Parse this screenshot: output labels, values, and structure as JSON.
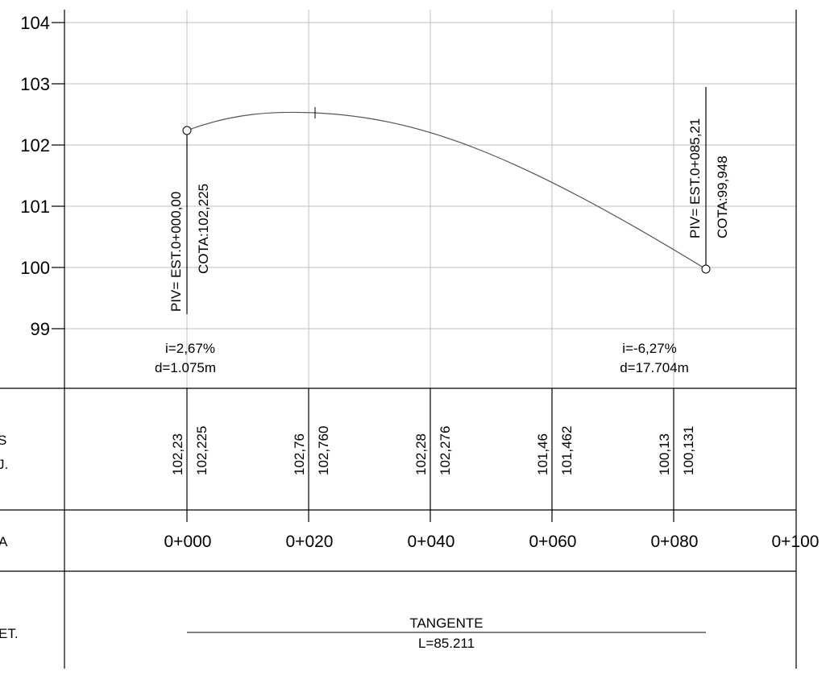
{
  "profile": {
    "y_ticks": [
      "104",
      "103",
      "102",
      "101",
      "100",
      "99"
    ],
    "piv_start": {
      "label": "PIV= EST.0+000,00",
      "cota": "COTA:102,225"
    },
    "piv_end": {
      "label": "PIV= EST.0+085,21",
      "cota": "COTA:99,948"
    },
    "slope_left": {
      "i": "i=2,67%",
      "d": "d=1.075m"
    },
    "slope_right": {
      "i": "i=-6,27%",
      "d": "d=17.704m"
    }
  },
  "rows": {
    "cotas_label_partial": [
      "S",
      "J."
    ],
    "estaca_label_partial": "A",
    "alinhamento_label_partial": "ET.",
    "cotas": [
      {
        "terreno": "102,23",
        "projeto": "102,225"
      },
      {
        "terreno": "102,76",
        "projeto": "102,760"
      },
      {
        "terreno": "102,28",
        "projeto": "102,276"
      },
      {
        "terreno": "101,46",
        "projeto": "101,462"
      },
      {
        "terreno": "100,13",
        "projeto": "100,131"
      }
    ],
    "stations": [
      "0+000",
      "0+020",
      "0+040",
      "0+060",
      "0+080",
      "0+100"
    ],
    "tangent": {
      "title": "TANGENTE",
      "length": "L=85.211"
    }
  }
}
